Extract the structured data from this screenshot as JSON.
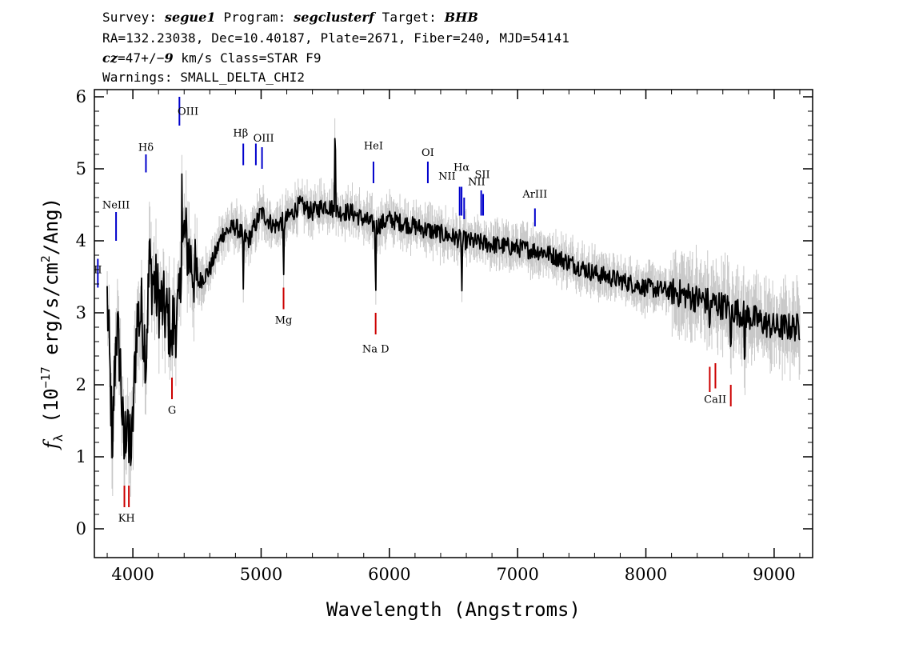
{
  "header": {
    "survey_prefix": "Survey: ",
    "survey": "segue1",
    "program_prefix": " Program: ",
    "program": "segclusterf",
    "target_prefix": " Target: ",
    "target": "BHB",
    "line2": "RA=132.23038, Dec=10.40187, Plate=2671, Fiber=240, MJD=54141",
    "cz_label": "cz",
    "cz_value": "=47+/−",
    "cz_err": "9",
    "cz_rest": " km/s Class=STAR F9",
    "line4": "Warnings: SMALL_DELTA_CHI2"
  },
  "chart_data": {
    "type": "line",
    "xlabel": "Wavelength (Angstroms)",
    "ylabel": "f_λ (10^-17 erg/s/cm^2/Ang)",
    "xlim": [
      3700,
      9300
    ],
    "ylim": [
      -0.4,
      6.1
    ],
    "x_ticks": [
      4000,
      5000,
      6000,
      7000,
      8000,
      9000
    ],
    "y_ticks": [
      0,
      1,
      2,
      3,
      4,
      5,
      6
    ],
    "colors": {
      "spectrum": "#000000",
      "noise": "#c8c8c8",
      "emission": "#0000cc",
      "absorption": "#cc0000"
    },
    "spectrum_anchors": {
      "x": [
        3800,
        3840,
        3870,
        3900,
        3930,
        3960,
        3990,
        4030,
        4070,
        4100,
        4130,
        4200,
        4300,
        4360,
        4400,
        4500,
        4600,
        4700,
        4800,
        4900,
        5000,
        5100,
        5200,
        5300,
        5400,
        5500,
        5600,
        5700,
        5800,
        5900,
        6000,
        6200,
        6400,
        6600,
        6800,
        7000,
        7200,
        7400,
        7600,
        7800,
        8000,
        8200,
        8400,
        8600,
        8800,
        9000,
        9200
      ],
      "y": [
        3.2,
        1.2,
        2.8,
        2.4,
        1.0,
        1.8,
        1.0,
        2.9,
        3.0,
        2.5,
        3.6,
        3.2,
        2.8,
        3.0,
        4.1,
        3.4,
        3.6,
        4.1,
        4.2,
        4.0,
        4.4,
        4.2,
        4.3,
        4.5,
        4.4,
        4.5,
        4.4,
        4.4,
        4.3,
        4.2,
        4.3,
        4.2,
        4.1,
        4.0,
        3.95,
        3.9,
        3.85,
        3.7,
        3.55,
        3.45,
        3.35,
        3.3,
        3.2,
        3.1,
        2.95,
        2.8,
        2.8
      ]
    },
    "spectrum_features": [
      {
        "x": 3840,
        "y": 0.6
      },
      {
        "x": 3935,
        "y": 1.0
      },
      {
        "x": 3970,
        "y": 0.7
      },
      {
        "x": 4102,
        "y": 2.0
      },
      {
        "x": 4130,
        "y": 4.1
      },
      {
        "x": 4305,
        "y": 2.3
      },
      {
        "x": 4382,
        "y": 5.0
      },
      {
        "x": 4861,
        "y": 3.3
      },
      {
        "x": 5175,
        "y": 3.4
      },
      {
        "x": 5577,
        "y": 6.0
      },
      {
        "x": 5893,
        "y": 3.1
      },
      {
        "x": 6565,
        "y": 3.2
      },
      {
        "x": 8498,
        "y": 2.6
      },
      {
        "x": 8662,
        "y": 2.2
      },
      {
        "x": 8770,
        "y": 2.0
      }
    ],
    "emission_lines": [
      {
        "label": "II",
        "x": 3727,
        "y_top": 3.75,
        "y_bot": 3.35
      },
      {
        "label": "NeIII",
        "x": 3869,
        "y_top": 4.4,
        "y_bot": 4.0
      },
      {
        "label": "Hδ",
        "x": 4102,
        "y_top": 5.2,
        "y_bot": 4.95
      },
      {
        "label": "OIII",
        "x": 4363,
        "y_top": 6.0,
        "y_bot": 5.6
      },
      {
        "label": "Hβ",
        "x": 4861,
        "y_top": 5.35,
        "y_bot": 5.05
      },
      {
        "label": "OIII",
        "x": 4959,
        "y_top": 5.35,
        "y_bot": 5.05
      },
      {
        "label": "OIII",
        "x": 5007,
        "y_top": 5.3,
        "y_bot": 5.0
      },
      {
        "label": "HeI",
        "x": 5876,
        "y_top": 5.1,
        "y_bot": 4.8
      },
      {
        "label": "OI",
        "x": 6300,
        "y_top": 5.1,
        "y_bot": 4.8
      },
      {
        "label": "NII",
        "x": 6548,
        "y_top": 4.75,
        "y_bot": 4.35
      },
      {
        "label": "Hα",
        "x": 6563,
        "y_top": 4.75,
        "y_bot": 4.35
      },
      {
        "label": "NII",
        "x": 6583,
        "y_top": 4.6,
        "y_bot": 4.3
      },
      {
        "label": "SII",
        "x": 6716,
        "y_top": 4.7,
        "y_bot": 4.35
      },
      {
        "label": "SII",
        "x": 6731,
        "y_top": 4.65,
        "y_bot": 4.35
      },
      {
        "label": "ArIII",
        "x": 7135,
        "y_top": 4.45,
        "y_bot": 4.2
      }
    ],
    "absorption_lines": [
      {
        "label": "K",
        "x": 3934,
        "y_top": 0.6,
        "y_bot": 0.3
      },
      {
        "label": "H",
        "x": 3969,
        "y_top": 0.6,
        "y_bot": 0.3
      },
      {
        "label": "G",
        "x": 4305,
        "y_top": 2.1,
        "y_bot": 1.8
      },
      {
        "label": "Mg",
        "x": 5175,
        "y_top": 3.35,
        "y_bot": 3.05
      },
      {
        "label": "Na D",
        "x": 5893,
        "y_top": 3.0,
        "y_bot": 2.7
      },
      {
        "label": "CaII",
        "x": 8498,
        "y_top": 2.25,
        "y_bot": 1.9
      },
      {
        "label": "CaII",
        "x": 8542,
        "y_top": 2.3,
        "y_bot": 1.95
      },
      {
        "label": "CaII",
        "x": 8662,
        "y_top": 2.0,
        "y_bot": 1.7
      }
    ],
    "line_labels": [
      {
        "text": "II",
        "x": 3727,
        "y": 3.55
      },
      {
        "text": "NeIII",
        "x": 3869,
        "y": 4.45
      },
      {
        "text": "Hδ",
        "x": 4102,
        "y": 5.25
      },
      {
        "text": "OIII",
        "x": 4430,
        "y": 5.75
      },
      {
        "text": "Hβ",
        "x": 4840,
        "y": 5.45
      },
      {
        "text": "OIII",
        "x": 5020,
        "y": 5.38
      },
      {
        "text": "HeI",
        "x": 5876,
        "y": 5.27
      },
      {
        "text": "OI",
        "x": 6300,
        "y": 5.18
      },
      {
        "text": "NII",
        "x": 6450,
        "y": 4.85
      },
      {
        "text": "Hα",
        "x": 6563,
        "y": 4.97
      },
      {
        "text": "NII",
        "x": 6680,
        "y": 4.77
      },
      {
        "text": "SII",
        "x": 6725,
        "y": 4.87
      },
      {
        "text": "ArIII",
        "x": 7135,
        "y": 4.6
      },
      {
        "text": "KH",
        "x": 3951,
        "y": 0.1
      },
      {
        "text": "G",
        "x": 4305,
        "y": 1.6
      },
      {
        "text": "Mg",
        "x": 5175,
        "y": 2.85
      },
      {
        "text": "Na D",
        "x": 5893,
        "y": 2.45
      },
      {
        "text": "CaII",
        "x": 8540,
        "y": 1.75
      }
    ]
  }
}
